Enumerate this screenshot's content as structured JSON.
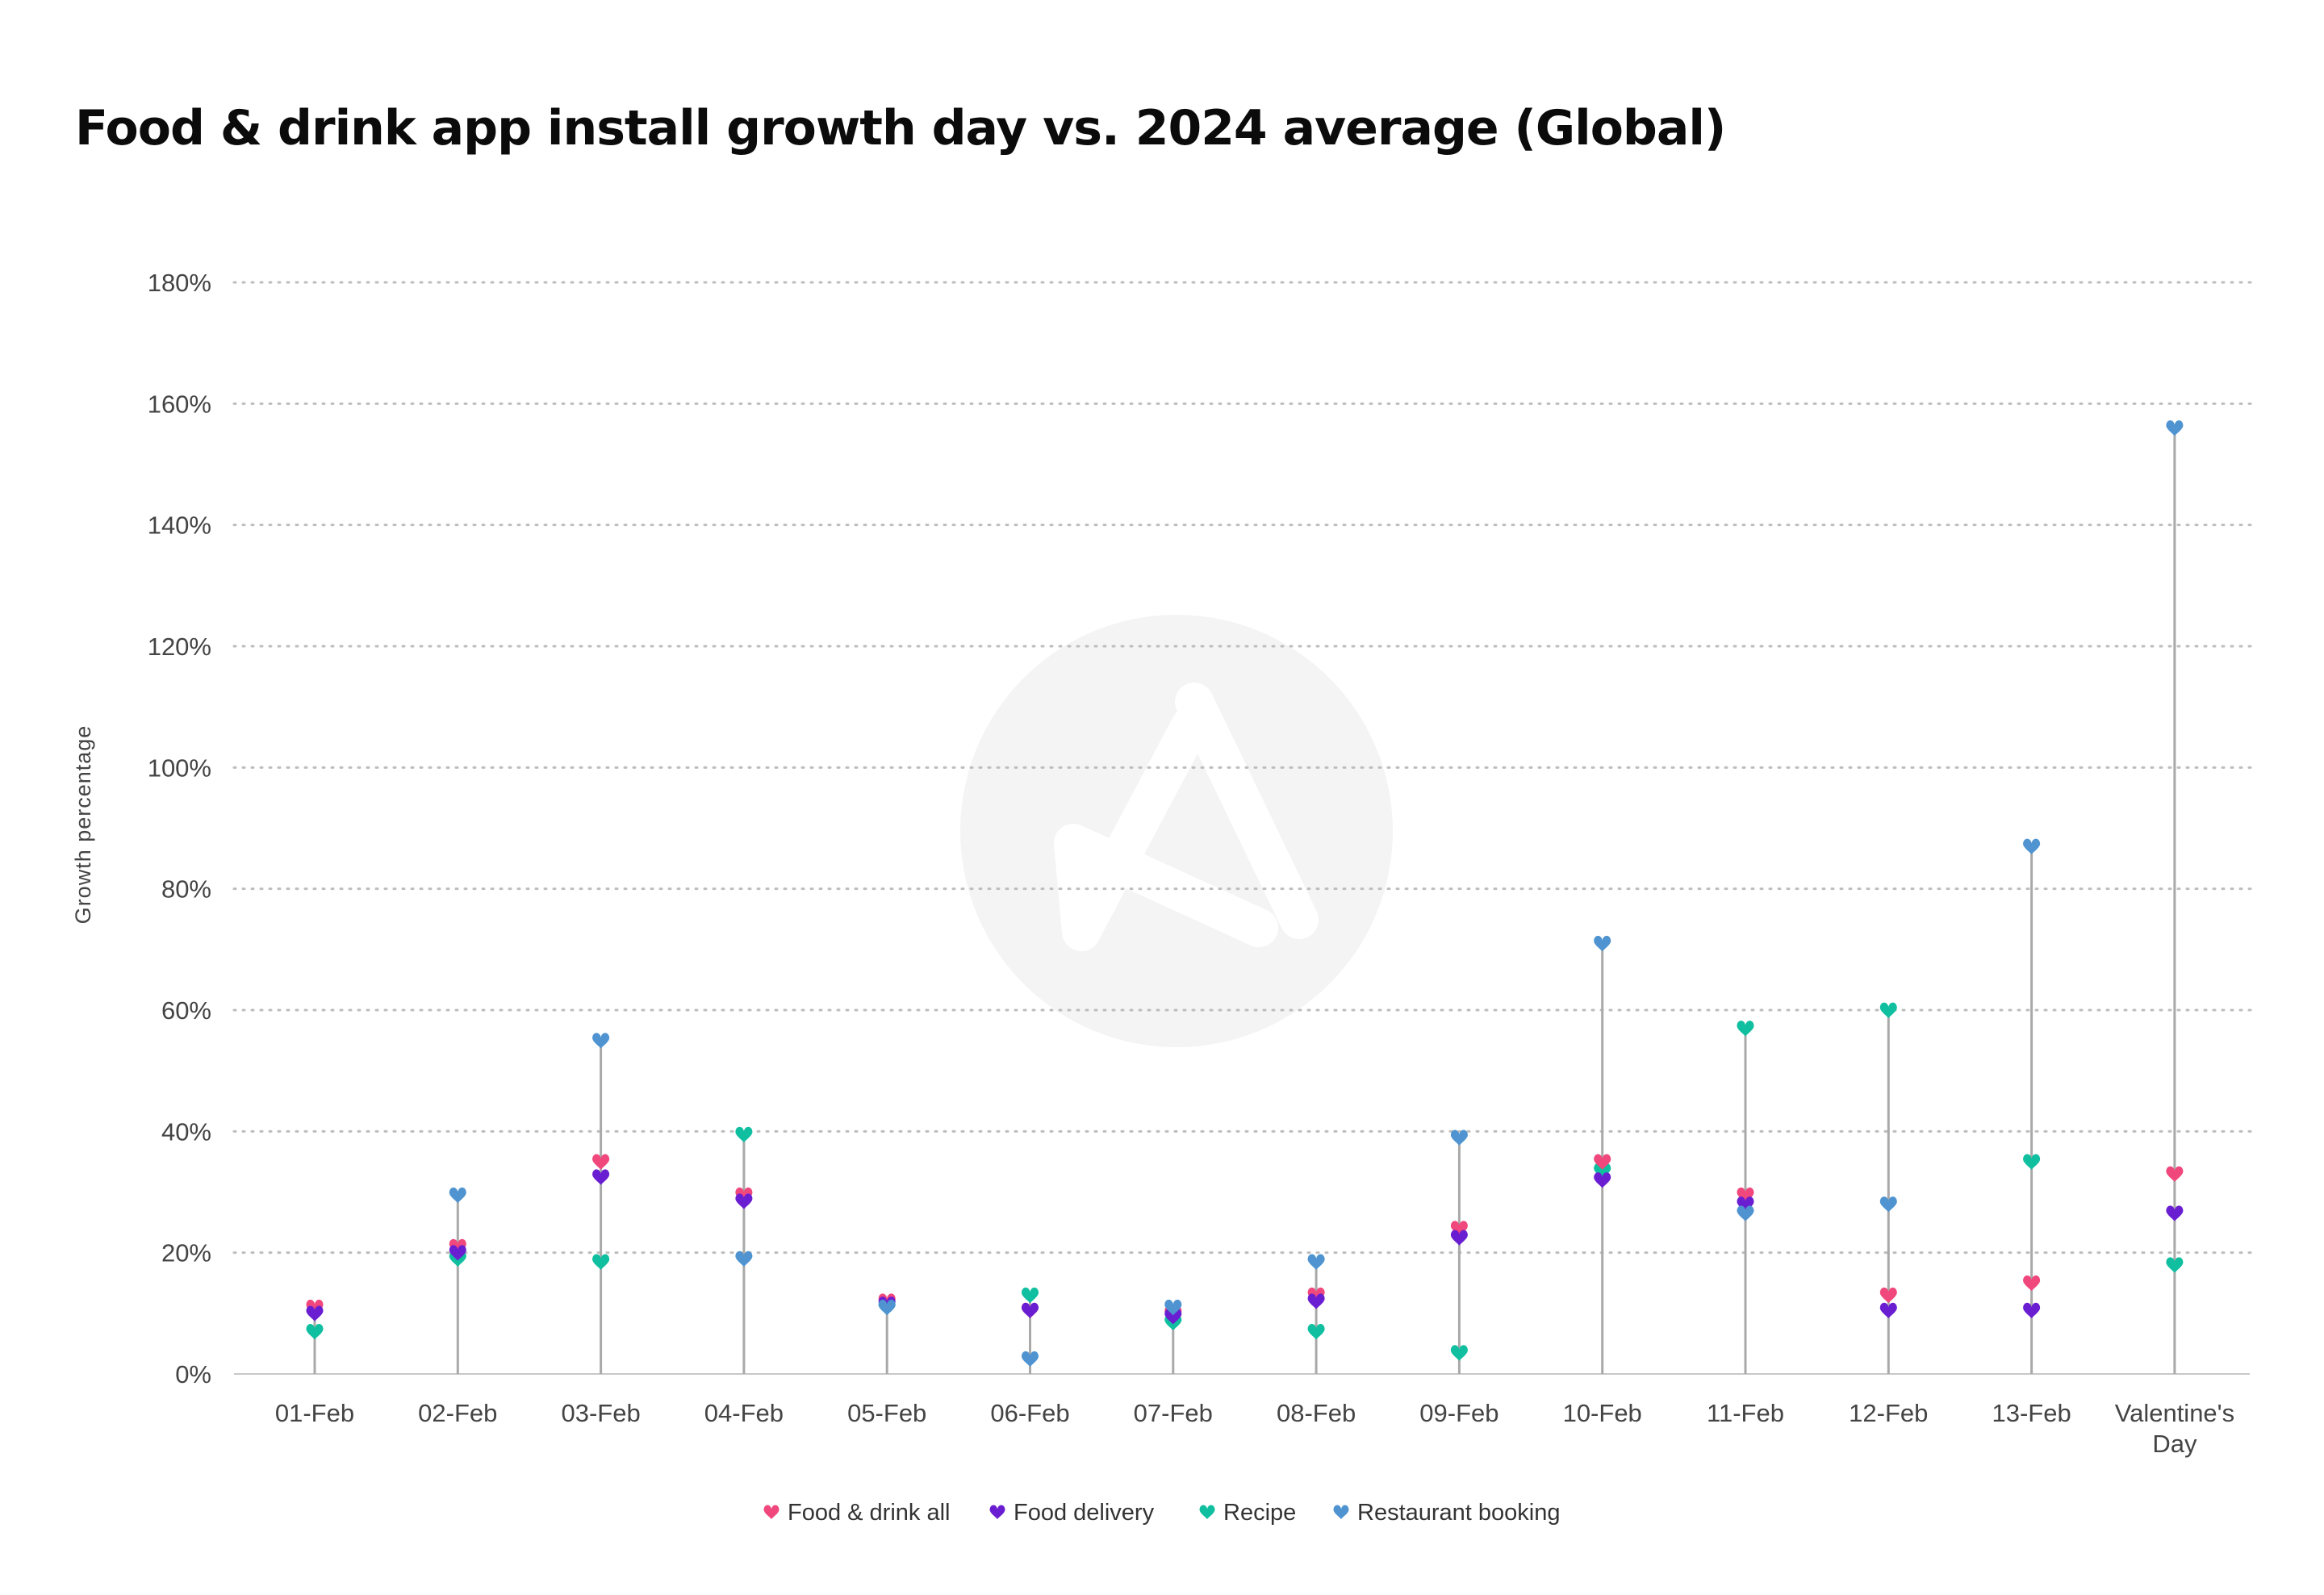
{
  "chart_data": {
    "type": "scatter",
    "title": "Food & drink app install growth day vs. 2024 average (Global)",
    "ylabel": "Growth percentage",
    "xlabel": "",
    "ylim": [
      0,
      180
    ],
    "yticks": [
      0,
      20,
      40,
      60,
      80,
      100,
      120,
      140,
      160,
      180
    ],
    "ytick_labels": [
      "0%",
      "20%",
      "40%",
      "60%",
      "80%",
      "100%",
      "120%",
      "140%",
      "160%",
      "180%"
    ],
    "grid": true,
    "legend_position": "bottom",
    "marker": "heart",
    "categories": [
      [
        "01-Feb"
      ],
      [
        "02-Feb"
      ],
      [
        "03-Feb"
      ],
      [
        "04-Feb"
      ],
      [
        "05-Feb"
      ],
      [
        "06-Feb"
      ],
      [
        "07-Feb"
      ],
      [
        "08-Feb"
      ],
      [
        "09-Feb"
      ],
      [
        "10-Feb"
      ],
      [
        "11-Feb"
      ],
      [
        "12-Feb"
      ],
      [
        "13-Feb"
      ],
      [
        "Valentine's",
        "Day"
      ]
    ],
    "series": [
      {
        "name": "Food & drink all",
        "color": "#f0477c",
        "values": [
          11,
          21,
          35,
          29.5,
          12,
          10.5,
          10,
          13,
          24,
          35,
          29.5,
          13,
          15,
          33
        ]
      },
      {
        "name": "Food delivery",
        "color": "#6a1ed1",
        "values": [
          10,
          20,
          32.5,
          28.5,
          11.5,
          10.5,
          9.5,
          12,
          22.5,
          32,
          28,
          10.5,
          10.5,
          26.5
        ]
      },
      {
        "name": "Recipe",
        "color": "#0fbf9f",
        "values": [
          7,
          19,
          18.5,
          39.5,
          11,
          13,
          8.5,
          7,
          3.5,
          33.5,
          57,
          60,
          35,
          18
        ]
      },
      {
        "name": "Restaurant booking",
        "color": "#4f94d0",
        "values": [
          null,
          29.5,
          55,
          19,
          11,
          2.5,
          11,
          18.5,
          39,
          71,
          26.5,
          28,
          87,
          156
        ]
      }
    ]
  }
}
